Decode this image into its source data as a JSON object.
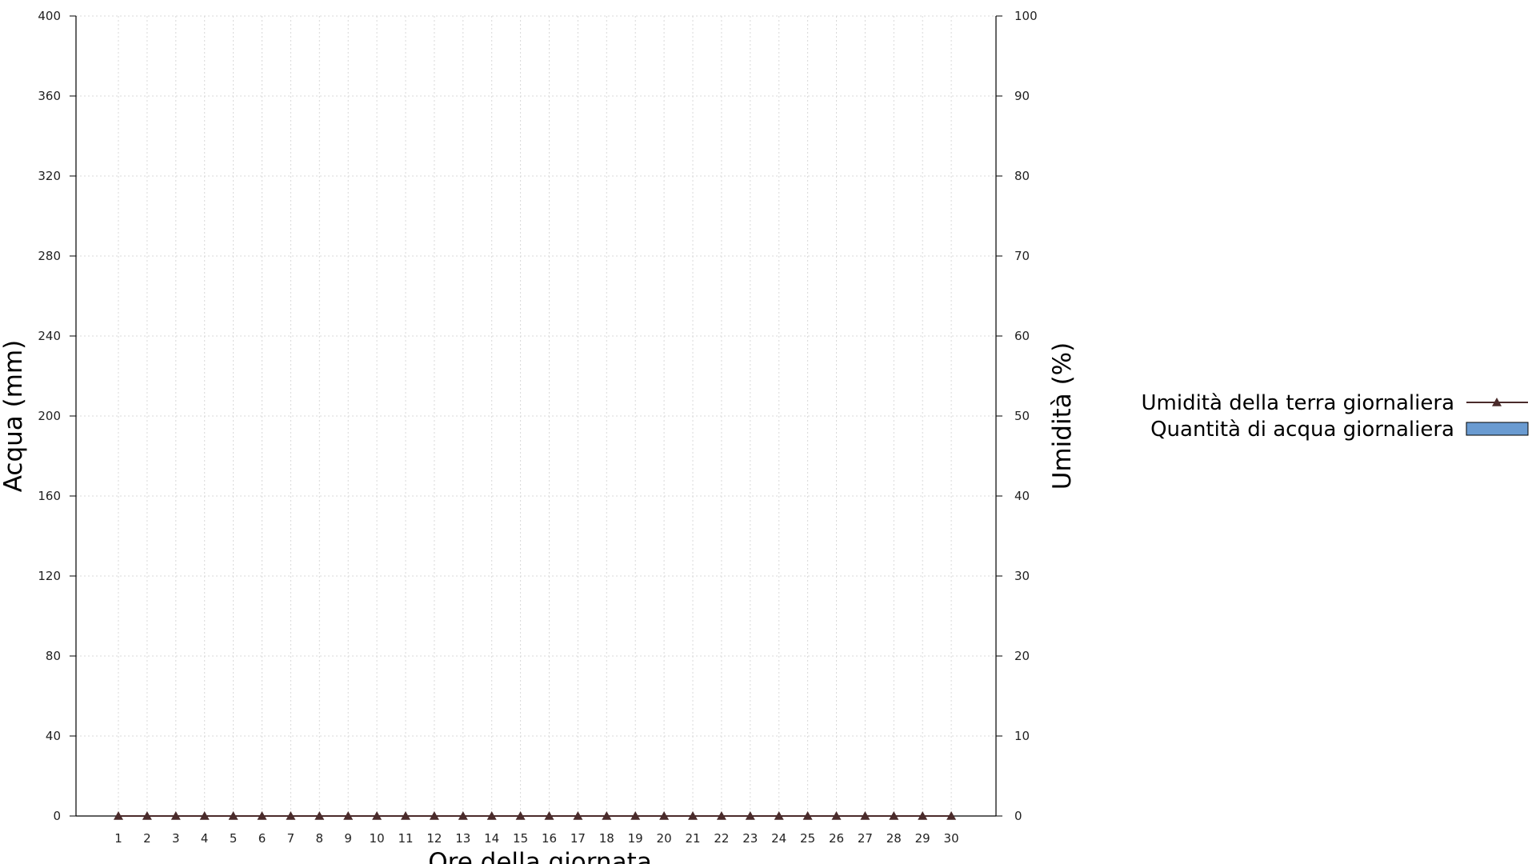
{
  "chart_data": {
    "type": "bar",
    "title": "",
    "xlabel": "Ore della giornata",
    "ylabel": "Acqua (mm)",
    "y2label": "Umidità (%)",
    "categories": [
      "1",
      "2",
      "3",
      "4",
      "5",
      "6",
      "7",
      "8",
      "9",
      "10",
      "11",
      "12",
      "13",
      "14",
      "15",
      "16",
      "17",
      "18",
      "19",
      "20",
      "21",
      "22",
      "23",
      "24",
      "25",
      "26",
      "27",
      "28",
      "29",
      "30"
    ],
    "ylim": [
      0,
      400
    ],
    "yticks": [
      0,
      40,
      80,
      120,
      160,
      200,
      240,
      280,
      320,
      360,
      400
    ],
    "y2lim": [
      0,
      100
    ],
    "y2ticks": [
      0,
      10,
      20,
      30,
      40,
      50,
      60,
      70,
      80,
      90,
      100
    ],
    "grid": true,
    "legend_position": "right",
    "series": [
      {
        "name": "Umidità della terra giornaliera",
        "kind": "line",
        "axis": "right",
        "marker": "triangle",
        "color": "#4a2b2b",
        "values": [
          0,
          0,
          0,
          0,
          0,
          0,
          0,
          0,
          0,
          0,
          0,
          0,
          0,
          0,
          0,
          0,
          0,
          0,
          0,
          0,
          0,
          0,
          0,
          0,
          0,
          0,
          0,
          0,
          0,
          0
        ]
      },
      {
        "name": "Quantità di acqua giornaliera",
        "kind": "bar",
        "axis": "left",
        "color": "#6a9bd1",
        "values": [
          0,
          0,
          0,
          0,
          0,
          0,
          0,
          0,
          0,
          0,
          0,
          0,
          0,
          0,
          0,
          0,
          0,
          0,
          0,
          0,
          0,
          0,
          0,
          0,
          0,
          0,
          0,
          0,
          0,
          0
        ]
      }
    ]
  }
}
